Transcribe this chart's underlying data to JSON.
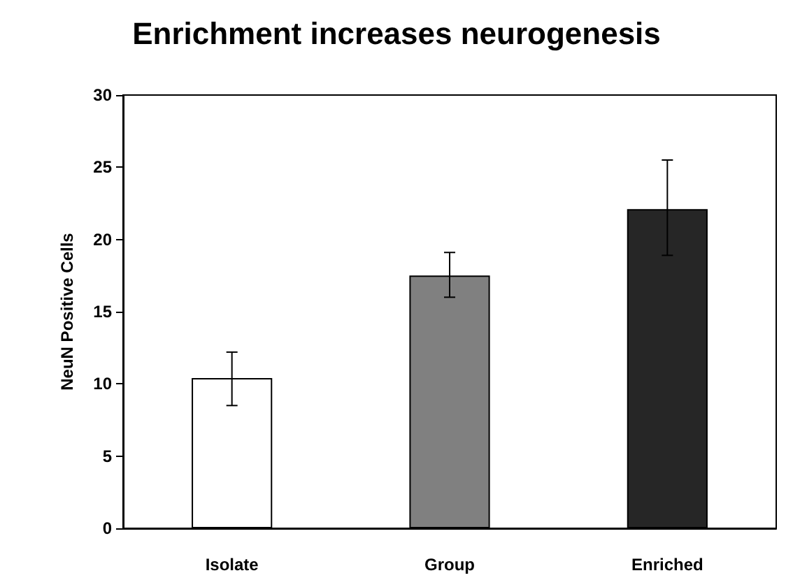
{
  "chart_data": {
    "type": "bar",
    "title": "Enrichment increases neurogenesis",
    "ylabel": "NeuN Positive Cells",
    "categories": [
      "Isolate",
      "Group",
      "Enriched"
    ],
    "values": [
      10.4,
      17.5,
      22.1
    ],
    "colors": [
      "#ffffff",
      "#808080",
      "#262626"
    ],
    "errors": [
      [
        8.5,
        12.2
      ],
      [
        16,
        19.1
      ],
      [
        18.9,
        25.5
      ]
    ],
    "ylim": [
      0,
      30
    ],
    "yticks": [
      0,
      5,
      10,
      15,
      20,
      25,
      30
    ],
    "grid": false
  }
}
